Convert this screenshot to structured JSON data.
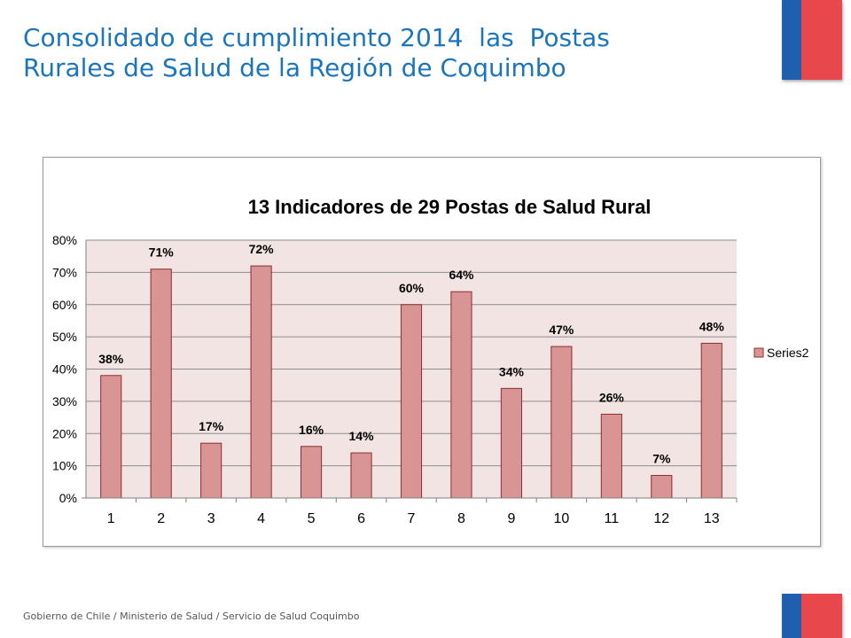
{
  "title": {
    "line1": "Consolidado de cumplimiento 2014  las  Postas",
    "line2": "Rurales de Salud de la Región de Coquimbo"
  },
  "footer": "Gobierno de Chile / Ministerio de Salud / Servicio de Salud Coquimbo",
  "colors": {
    "title": "#1b75bc",
    "bar_fill": "#d99594",
    "bar_stroke": "#8b2e2e",
    "plot_bg": "#f2e4e3",
    "flag_blue": "#1f5fae",
    "flag_red": "#e8474c"
  },
  "chart_data": {
    "type": "bar",
    "title": "13 Indicadores de 29 Postas de Salud Rural",
    "categories": [
      "1",
      "2",
      "3",
      "4",
      "5",
      "6",
      "7",
      "8",
      "9",
      "10",
      "11",
      "12",
      "13"
    ],
    "series": [
      {
        "name": "Series2",
        "values": [
          38,
          71,
          17,
          72,
          16,
          14,
          60,
          64,
          34,
          47,
          26,
          7,
          48
        ]
      }
    ],
    "data_labels": [
      "38%",
      "71%",
      "17%",
      "72%",
      "16%",
      "14%",
      "60%",
      "64%",
      "34%",
      "47%",
      "26%",
      "7%",
      "48%"
    ],
    "y_ticks": [
      "0%",
      "10%",
      "20%",
      "30%",
      "40%",
      "50%",
      "60%",
      "70%",
      "80%"
    ],
    "ylim": [
      0,
      80
    ],
    "xlabel": "",
    "ylabel": "",
    "grid": true,
    "legend": "right"
  }
}
